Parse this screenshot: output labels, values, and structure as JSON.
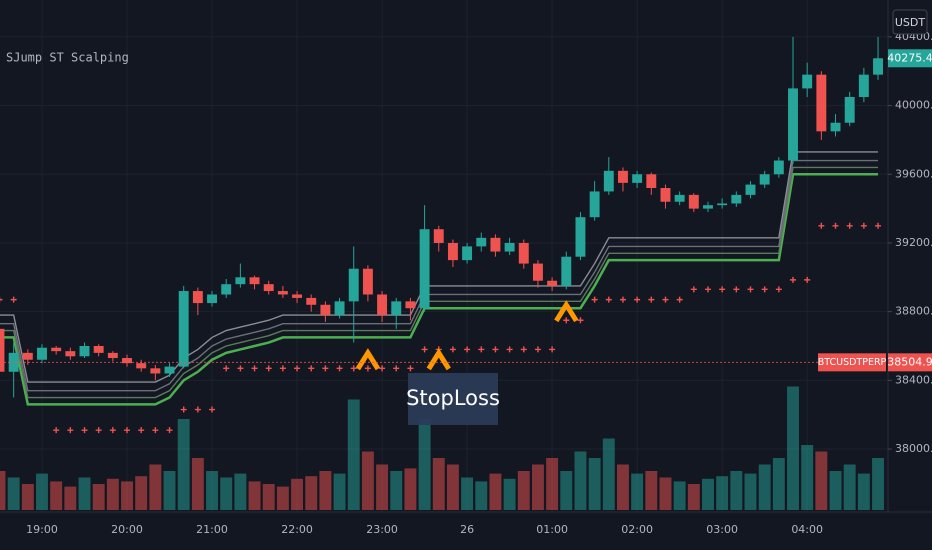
{
  "chart_data": {
    "type": "candlestick",
    "title": "SJump ST Scalping",
    "currency": "USDT",
    "categories": [
      null,
      null,
      null,
      "19:00",
      null,
      null,
      null,
      null,
      null,
      "20:00",
      null,
      null,
      null,
      null,
      null,
      "21:00",
      null,
      null,
      null,
      null,
      null,
      "22:00",
      null,
      null,
      null,
      null,
      null,
      "23:00",
      null,
      null,
      null,
      null,
      null,
      "26",
      null,
      null,
      null,
      null,
      null,
      "01:00",
      null,
      null,
      null,
      null,
      null,
      "02:00",
      null,
      null,
      null,
      null,
      null,
      "03:00",
      null,
      null,
      null,
      null,
      null,
      "04:00",
      null,
      null,
      null,
      null,
      null
    ],
    "open": [
      38700,
      38450,
      38560,
      38520,
      38590,
      38570,
      38540,
      38600,
      38560,
      38530,
      38500,
      38470,
      38440,
      38480,
      38920,
      38850,
      38900,
      38960,
      39000,
      38960,
      38920,
      38900,
      38880,
      38840,
      38780,
      38860,
      39050,
      38900,
      38780,
      38860,
      38820,
      39280,
      39200,
      39100,
      39180,
      39230,
      39150,
      39200,
      39080,
      38980,
      38950,
      39120,
      39350,
      39500,
      39620,
      39550,
      39600,
      39520,
      39440,
      39480,
      39400,
      39420,
      39430,
      39480,
      39540,
      39600,
      39680,
      40100,
      40180,
      39850,
      39900,
      40050,
      40180
    ],
    "high": [
      38720,
      38620,
      38580,
      38610,
      38600,
      38590,
      38620,
      38610,
      38570,
      38550,
      38520,
      38490,
      38500,
      38950,
      38940,
      38920,
      38990,
      39080,
      39010,
      38980,
      38950,
      38920,
      38900,
      38860,
      38880,
      39180,
      39070,
      38920,
      38880,
      38880,
      39420,
      39300,
      39220,
      39200,
      39260,
      39250,
      39230,
      39220,
      39100,
      39000,
      39150,
      39380,
      39560,
      39700,
      39640,
      39620,
      39610,
      39540,
      39500,
      39490,
      39440,
      39460,
      39500,
      39560,
      39620,
      39700,
      40400,
      40250,
      40200,
      39950,
      40080,
      40220,
      40400
    ],
    "low": [
      38420,
      38300,
      38490,
      38500,
      38550,
      38520,
      38530,
      38540,
      38510,
      38480,
      38450,
      38400,
      38420,
      38470,
      38780,
      38830,
      38880,
      38940,
      38930,
      38900,
      38880,
      38850,
      38800,
      38740,
      38760,
      38620,
      38860,
      38740,
      38700,
      38750,
      38800,
      39150,
      39060,
      39080,
      39150,
      39120,
      39130,
      39050,
      38940,
      38920,
      38930,
      39100,
      39330,
      39480,
      39500,
      39520,
      39480,
      39400,
      39420,
      39380,
      39380,
      39400,
      39410,
      39460,
      39520,
      39580,
      39660,
      40050,
      39800,
      39820,
      39880,
      40020,
      40150
    ],
    "close": [
      38450,
      38560,
      38520,
      38590,
      38570,
      38540,
      38600,
      38560,
      38530,
      38500,
      38470,
      38440,
      38480,
      38920,
      38850,
      38900,
      38960,
      39000,
      38960,
      38920,
      38900,
      38880,
      38840,
      38780,
      38860,
      39050,
      38900,
      38780,
      38860,
      38820,
      39280,
      39200,
      39100,
      39180,
      39230,
      39150,
      39200,
      39080,
      38980,
      38950,
      39120,
      39350,
      39500,
      39620,
      39550,
      39600,
      39520,
      39440,
      39480,
      39400,
      39420,
      39430,
      39480,
      39540,
      39600,
      39680,
      40100,
      40180,
      39850,
      39900,
      40050,
      40180,
      40275.4
    ],
    "volume": [
      30,
      25,
      20,
      28,
      22,
      18,
      25,
      20,
      24,
      22,
      26,
      35,
      30,
      70,
      40,
      30,
      25,
      28,
      22,
      20,
      18,
      24,
      26,
      30,
      28,
      85,
      45,
      35,
      30,
      32,
      70,
      40,
      35,
      25,
      22,
      28,
      24,
      30,
      35,
      40,
      30,
      45,
      40,
      55,
      35,
      28,
      30,
      25,
      22,
      20,
      24,
      26,
      30,
      28,
      35,
      40,
      95,
      50,
      45,
      30,
      35,
      28,
      40
    ],
    "up_color": "#26a69a",
    "down_color": "#ef5350",
    "ylim": [
      37645,
      40510
    ],
    "vlim": [
      0,
      100
    ],
    "yticks": [
      {
        "value": 40400,
        "label": "40400.0"
      },
      {
        "value": 40000,
        "label": "40000.0"
      },
      {
        "value": 39600,
        "label": "39600.0"
      },
      {
        "value": 39200,
        "label": "39200.0"
      },
      {
        "value": 38800,
        "label": "38800.0"
      },
      {
        "value": 38400,
        "label": "38400.0"
      },
      {
        "value": 38000,
        "label": "38000.0"
      }
    ],
    "grid": true,
    "bands": [
      {
        "color": "#4caf50",
        "values": [
          38650,
          38650,
          38260,
          38260,
          38260,
          38260,
          38260,
          38260,
          38260,
          38260,
          38260,
          38260,
          38300,
          38400,
          38450,
          38520,
          38560,
          38580,
          38600,
          38620,
          38650,
          38650,
          38650,
          38650,
          38650,
          38650,
          38650,
          38650,
          38650,
          38650,
          38820,
          38820,
          38820,
          38820,
          38820,
          38820,
          38820,
          38820,
          38820,
          38820,
          38820,
          38820,
          38950,
          39100,
          39100,
          39100,
          39100,
          39100,
          39100,
          39100,
          39100,
          39100,
          39100,
          39100,
          39100,
          39100,
          39600,
          39600,
          39600,
          39600,
          39600,
          39600,
          39600
        ]
      },
      {
        "color": "#5d7a5f",
        "values": [
          38690,
          38690,
          38300,
          38300,
          38300,
          38300,
          38300,
          38300,
          38300,
          38300,
          38300,
          38300,
          38340,
          38440,
          38490,
          38560,
          38600,
          38620,
          38640,
          38660,
          38690,
          38690,
          38690,
          38690,
          38690,
          38690,
          38690,
          38690,
          38690,
          38690,
          38860,
          38860,
          38860,
          38860,
          38860,
          38860,
          38860,
          38860,
          38860,
          38860,
          38860,
          38860,
          38990,
          39140,
          39140,
          39140,
          39140,
          39140,
          39140,
          39140,
          39140,
          39140,
          39140,
          39140,
          39140,
          39140,
          39640,
          39640,
          39640,
          39640,
          39640,
          39640,
          39640
        ]
      },
      {
        "color": "#6b6f78",
        "values": [
          38730,
          38730,
          38340,
          38340,
          38340,
          38340,
          38340,
          38340,
          38340,
          38340,
          38340,
          38340,
          38380,
          38480,
          38530,
          38600,
          38640,
          38660,
          38680,
          38700,
          38730,
          38730,
          38730,
          38730,
          38730,
          38730,
          38730,
          38730,
          38730,
          38730,
          38900,
          38900,
          38900,
          38900,
          38900,
          38900,
          38900,
          38900,
          38900,
          38900,
          38900,
          38900,
          39030,
          39180,
          39180,
          39180,
          39180,
          39180,
          39180,
          39180,
          39180,
          39180,
          39180,
          39180,
          39180,
          39180,
          39680,
          39680,
          39680,
          39680,
          39680,
          39680,
          39680
        ]
      },
      {
        "color": "#8a8d94",
        "values": [
          38780,
          38780,
          38390,
          38390,
          38390,
          38390,
          38390,
          38390,
          38390,
          38390,
          38390,
          38390,
          38430,
          38530,
          38580,
          38650,
          38690,
          38710,
          38730,
          38750,
          38780,
          38780,
          38780,
          38780,
          38780,
          38780,
          38780,
          38780,
          38780,
          38780,
          38950,
          38950,
          38950,
          38950,
          38950,
          38950,
          38950,
          38950,
          38950,
          38950,
          38950,
          38950,
          39080,
          39230,
          39230,
          39230,
          39230,
          39230,
          39230,
          39230,
          39230,
          39230,
          39230,
          39230,
          39230,
          39230,
          39730,
          39730,
          39730,
          39730,
          39730,
          39730,
          39730
        ]
      }
    ],
    "stops": {
      "color": "#ef5350",
      "values": [
        38870,
        38870,
        null,
        null,
        38110,
        38110,
        38110,
        38110,
        38110,
        38110,
        38110,
        38110,
        38110,
        38230,
        38230,
        38230,
        38470,
        38470,
        38470,
        38470,
        38470,
        38470,
        38470,
        38470,
        38470,
        38470,
        38470,
        38470,
        38470,
        38470,
        38580,
        38580,
        38580,
        38580,
        38580,
        38580,
        38580,
        38580,
        38580,
        38580,
        38750,
        38750,
        38870,
        38870,
        38870,
        38870,
        38870,
        38870,
        38870,
        38930,
        38930,
        38930,
        38930,
        38930,
        38930,
        38930,
        38985,
        38985,
        39300,
        39300,
        39300,
        39300,
        39300
      ]
    },
    "signals": {
      "color": "#ff9800",
      "values": [
        null,
        null,
        null,
        null,
        null,
        null,
        null,
        null,
        null,
        null,
        null,
        null,
        null,
        null,
        null,
        null,
        null,
        null,
        null,
        null,
        null,
        null,
        null,
        null,
        null,
        null,
        38560,
        null,
        null,
        null,
        null,
        38560,
        null,
        null,
        null,
        null,
        null,
        null,
        null,
        null,
        38840,
        null,
        null,
        null,
        null,
        null,
        null,
        null,
        null,
        null,
        null,
        null,
        null,
        null,
        null,
        null,
        null,
        null,
        null,
        null,
        null,
        null,
        null
      ]
    },
    "last_price": 40275.4,
    "symbol": {
      "name": "BTCUSDTPERP",
      "value": 38504.9
    },
    "annotation": "StopLoss"
  }
}
